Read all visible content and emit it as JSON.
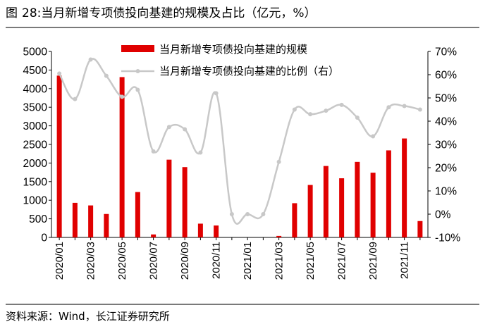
{
  "title": {
    "label": "图",
    "number": "28:",
    "text": "当月新增专项债投向基建的规模及占比（亿元，%）"
  },
  "source": "资料来源：Wind，长江证券研究所",
  "colors": {
    "bar": "#e00000",
    "line": "#c8c8c8",
    "marker": "#c8c8c8",
    "axis": "#000000",
    "rule": "#7a7a7a"
  },
  "chart_data": {
    "type": "bar+line",
    "categories": [
      "2020/01",
      "2020/02",
      "2020/03",
      "2020/04",
      "2020/05",
      "2020/06",
      "2020/07",
      "2020/08",
      "2020/09",
      "2020/10",
      "2020/11",
      "2020/12",
      "2021/01",
      "2021/02",
      "2021/03",
      "2021/04",
      "2021/05",
      "2021/06",
      "2021/07",
      "2021/08",
      "2021/09",
      "2021/10",
      "2021/11",
      "2021/12"
    ],
    "x_tick_labels": [
      "2020/01",
      "2020/03",
      "2020/05",
      "2020/07",
      "2020/09",
      "2020/11",
      "2021/01",
      "2021/03",
      "2021/05",
      "2021/07",
      "2021/09",
      "2021/11"
    ],
    "series": [
      {
        "name": "当月新增专项债投向基建的规模",
        "type": "bar",
        "axis": "left",
        "values": [
          4350,
          930,
          860,
          630,
          4310,
          1220,
          80,
          2090,
          1890,
          370,
          320,
          0,
          0,
          0,
          40,
          920,
          1410,
          1920,
          1590,
          2030,
          1740,
          2340,
          2660,
          440
        ]
      },
      {
        "name": "当月新增专项债投向基建的比例（右）",
        "type": "line",
        "axis": "right",
        "values": [
          60.5,
          49.5,
          66.5,
          59.5,
          50.5,
          53.5,
          27.0,
          37.5,
          36.5,
          26.5,
          52.0,
          0.0,
          0.0,
          0.0,
          22.5,
          45.0,
          43.0,
          44.5,
          47.0,
          41.5,
          33.5,
          46.0,
          46.5,
          45.0
        ]
      }
    ],
    "y_left": {
      "min": 0,
      "max": 5000,
      "step": 500,
      "tick_labels": [
        "0",
        "500",
        "1000",
        "1500",
        "2000",
        "2500",
        "3000",
        "3500",
        "4000",
        "4500",
        "5000"
      ]
    },
    "y_right": {
      "min": -10,
      "max": 70,
      "step": 10,
      "tick_labels": [
        "-10%",
        "0%",
        "10%",
        "20%",
        "30%",
        "40%",
        "50%",
        "60%",
        "70%"
      ]
    },
    "legend": {
      "position": "top-center",
      "entries": [
        "当月新增专项债投向基建的规模",
        "当月新增专项债投向基建的比例（右）"
      ]
    }
  }
}
